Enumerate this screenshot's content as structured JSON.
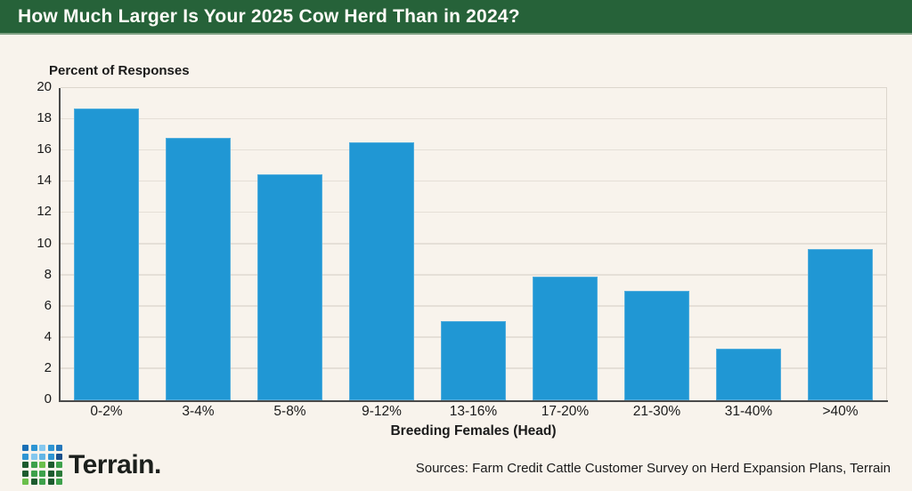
{
  "chart_data": {
    "type": "bar",
    "title": "How Much Larger Is Your 2025 Cow Herd Than in 2024?",
    "ylabel": "Percent of Responses",
    "xlabel": "Breeding Females (Head)",
    "categories": [
      "0-2%",
      "3-4%",
      "5-8%",
      "9-12%",
      "13-16%",
      "17-20%",
      "21-30%",
      "31-40%",
      ">40%"
    ],
    "values": [
      18.7,
      16.8,
      14.5,
      16.5,
      5.1,
      7.9,
      7.0,
      3.3,
      9.7
    ],
    "ylim": [
      0,
      20
    ],
    "ytick_step": 2,
    "grid": true,
    "legend": "none",
    "bar_color": "#2097d4"
  },
  "footer": {
    "brand": "Terrain.",
    "sources": "Sources: Farm Credit Cattle Customer Survey on Herd Expansion Plans, Terrain",
    "logo_grid_colors": [
      "#1a6fb5",
      "#2e95d3",
      "#85c8ef",
      "#2e95d3",
      "#2577bc",
      "#2e95d3",
      "#85c8ef",
      "#62b5e5",
      "#2e95d3",
      "#1a4f8a",
      "#1c5b2e",
      "#3da14b",
      "#6abf4b",
      "#1c5b2e",
      "#3da14b",
      "#1c5b2e",
      "#3da14b",
      "#3da14b",
      "#1c5b2e",
      "#2a7a38",
      "#6abf4b",
      "#1c5b2e",
      "#3da14b",
      "#1c5b2e",
      "#3da14b"
    ]
  },
  "colors": {
    "background": "#f8f3ec",
    "header_bg": "#266239",
    "bar": "#2097d4",
    "gridline": "#e5dfd7",
    "plot_border": "#dcd6cd",
    "axis": "#4a4a4a",
    "text": "#1a1a1a"
  }
}
